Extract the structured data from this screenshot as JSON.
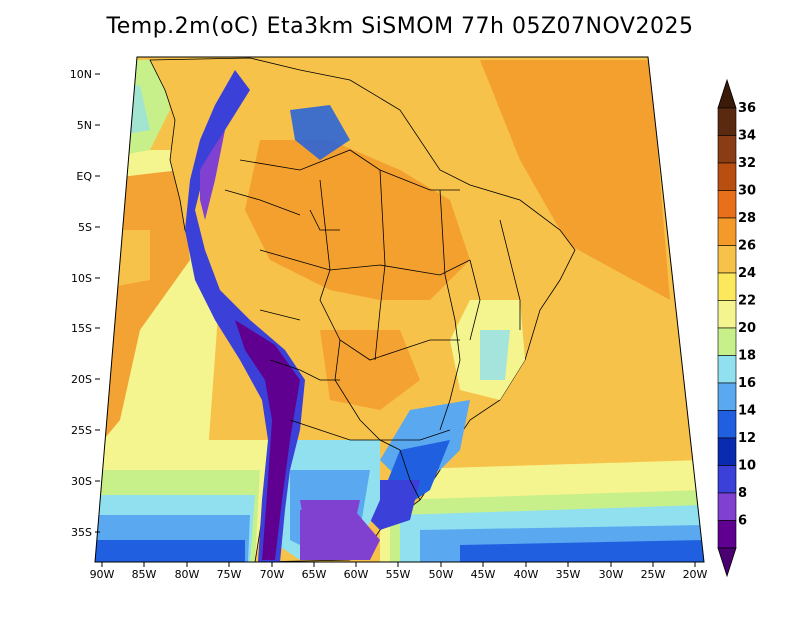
{
  "title": "Temp.2m(oC) Eta3km SiSMOM 77h 05Z07NOV2025",
  "lat_labels": [
    "10N",
    "5N",
    "EQ",
    "5S",
    "10S",
    "15S",
    "20S",
    "25S",
    "30S",
    "35S"
  ],
  "lon_labels": [
    "90W",
    "85W",
    "80W",
    "75W",
    "70W",
    "65W",
    "60W",
    "55W",
    "50W",
    "45W",
    "40W",
    "35W",
    "30W",
    "25W",
    "20W"
  ],
  "colorbar": {
    "labels": [
      "36",
      "34",
      "32",
      "30",
      "28",
      "26",
      "24",
      "22",
      "20",
      "18",
      "16",
      "14",
      "12",
      "10",
      "8",
      "6"
    ],
    "colors": [
      "#5a2a10",
      "#8a3d14",
      "#b84e10",
      "#e8701a",
      "#f39a2a",
      "#f7c24a",
      "#fbe85c",
      "#f5f590",
      "#c8f08a",
      "#90e0f0",
      "#5aa8f0",
      "#2060e0",
      "#0a2ab0",
      "#3a40d8",
      "#8040d0",
      "#600090"
    ]
  },
  "palette": {
    "ocean_warm": "#f7c24a",
    "ocean_mid": "#f5f590",
    "ocean_cool": "#c8f08a",
    "ocean_cold": "#5aa8f0",
    "land_hot": "#f39a2a",
    "land_warm": "#f7c24a",
    "andes_cold": "#600090",
    "andes_cool": "#3a40d8",
    "south_cool": "#5aa8f0",
    "border": "#000000"
  }
}
